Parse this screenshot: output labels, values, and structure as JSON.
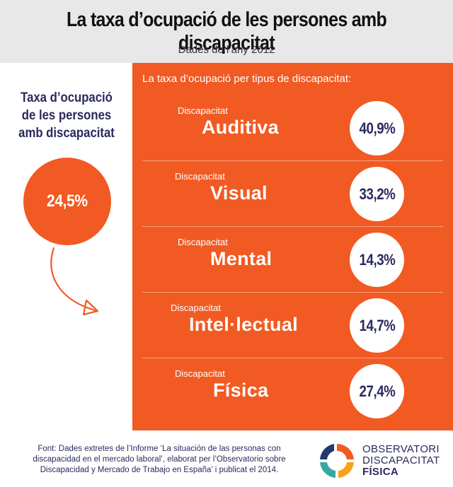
{
  "header": {
    "title": "La taxa d’ocupació de les persones amb discapacitat",
    "subtitle": "Dades de l’any 2012"
  },
  "overall": {
    "label": "Taxa d’ocupació de les persones amb discapacitat",
    "value_label": "24,5%"
  },
  "chart_data": {
    "type": "table",
    "title": "La taxa d’ocupació per tipus de discapacitat:",
    "unit": "%",
    "rows": [
      {
        "prefix": "Discapacitat",
        "category": "Auditiva",
        "value": 40.9,
        "value_label": "40,9%"
      },
      {
        "prefix": "Discapacitat",
        "category": "Visual",
        "value": 33.2,
        "value_label": "33,2%"
      },
      {
        "prefix": "Discapacitat",
        "category": "Mental",
        "value": 14.3,
        "value_label": "14,3%"
      },
      {
        "prefix": "Discapacitat",
        "category": "Intel·lectual",
        "value": 14.7,
        "value_label": "14,7%"
      },
      {
        "prefix": "Discapacitat",
        "category": "Física",
        "value": 27.4,
        "value_label": "27,4%"
      }
    ]
  },
  "footer": {
    "source": "Font: Dades extretes de l’Informe ‘La situación de las personas con discapacidad en el mercado laboral’, elaborat per l’Observatorio sobre Discapacidad y Mercado de Trabajo en España’ i publicat el 2014."
  },
  "logo": {
    "line1": "OBSERVATORI",
    "line2": "DISCAPACITAT",
    "line3": "FÍSICA",
    "colors": [
      "#1e3a6e",
      "#f15a22",
      "#3aa6a0",
      "#f7a21b"
    ]
  }
}
